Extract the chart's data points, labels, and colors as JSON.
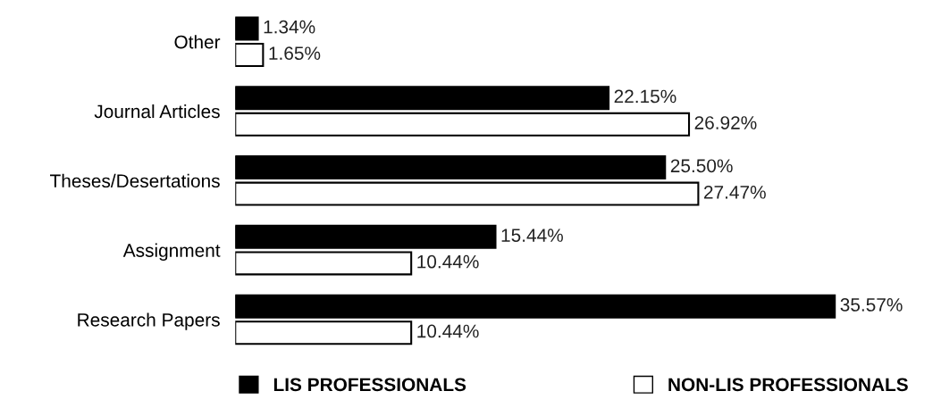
{
  "chart_data": {
    "type": "bar",
    "orientation": "horizontal",
    "categories": [
      "Other",
      "Journal Articles",
      "Theses/Desertations",
      "Assignment",
      "Research Papers"
    ],
    "series": [
      {
        "name": "LIS PROFESSIONALS",
        "color": "#000000",
        "values": [
          1.34,
          22.15,
          25.5,
          15.44,
          35.57
        ],
        "value_labels": [
          "1.34%",
          "22.15%",
          "25.50%",
          "15.44%",
          "35.57%"
        ]
      },
      {
        "name": "NON-LIS PROFESSIONALS",
        "color": "#ffffff",
        "values": [
          1.65,
          26.92,
          27.47,
          10.44,
          10.44
        ],
        "value_labels": [
          "1.65%",
          "26.92%",
          "27.47%",
          "10.44%",
          "10.44%"
        ]
      }
    ],
    "legend": "bottom",
    "grid": false
  }
}
